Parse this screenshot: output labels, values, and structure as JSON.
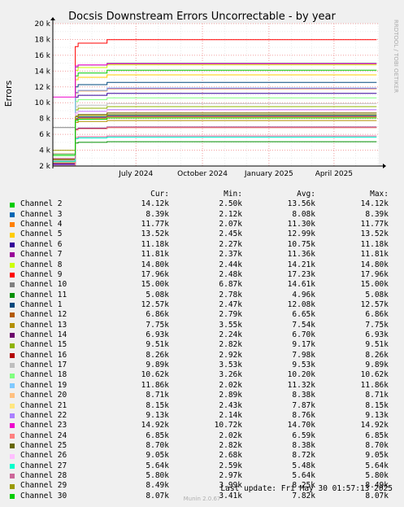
{
  "chart_data": {
    "type": "line",
    "title": "Docsis Downstream Errors Uncorrectable - by year",
    "ylabel": "Errors",
    "ylim": [
      2000,
      20000
    ],
    "yticks": [
      {
        "v": 2000,
        "label": "2 k"
      },
      {
        "v": 4000,
        "label": "4 k"
      },
      {
        "v": 6000,
        "label": "6 k"
      },
      {
        "v": 8000,
        "label": "8 k"
      },
      {
        "v": 10000,
        "label": "10 k"
      },
      {
        "v": 12000,
        "label": "12 k"
      },
      {
        "v": 14000,
        "label": "14 k"
      },
      {
        "v": 16000,
        "label": "16 k"
      },
      {
        "v": 18000,
        "label": "18 k"
      },
      {
        "v": 20000,
        "label": "20 k"
      }
    ],
    "xlim": [
      "2024-03-08",
      "2025-06-02"
    ],
    "xticks": [
      {
        "date": "2024-07-01",
        "label": "July 2024"
      },
      {
        "date": "2024-10-01",
        "label": "October 2024"
      },
      {
        "date": "2025-01-01",
        "label": "January 2025"
      },
      {
        "date": "2025-04-01",
        "label": "April 2025"
      }
    ],
    "series": [
      {
        "name": "Channel 2",
        "color": "#00cc00",
        "values": [
          2500,
          13400,
          13560,
          14120
        ]
      },
      {
        "name": "Channel 3",
        "color": "#0066b3",
        "values": [
          2120,
          8000,
          8080,
          8390
        ]
      },
      {
        "name": "Channel 4",
        "color": "#ff8000",
        "values": [
          2070,
          11200,
          11300,
          11770
        ]
      },
      {
        "name": "Channel 5",
        "color": "#ffcc00",
        "values": [
          2450,
          12900,
          12990,
          13520
        ]
      },
      {
        "name": "Channel 6",
        "color": "#330099",
        "values": [
          2270,
          10700,
          10750,
          11180
        ]
      },
      {
        "name": "Channel 7",
        "color": "#990099",
        "values": [
          2370,
          11300,
          11360,
          11810
        ]
      },
      {
        "name": "Channel 8",
        "color": "#ccff00",
        "values": [
          2440,
          14100,
          14210,
          14800
        ]
      },
      {
        "name": "Channel 9",
        "color": "#ff0000",
        "values": [
          2480,
          17100,
          17230,
          17960
        ]
      },
      {
        "name": "Channel 10",
        "color": "#808080",
        "values": [
          6870,
          14500,
          14610,
          15000
        ]
      },
      {
        "name": "Channel 11",
        "color": "#008f00",
        "values": [
          2780,
          4900,
          4960,
          5080
        ]
      },
      {
        "name": "Channel 1",
        "color": "#00487d",
        "values": [
          2470,
          12000,
          12080,
          12570
        ]
      },
      {
        "name": "Channel 12",
        "color": "#b35a00",
        "values": [
          2790,
          6600,
          6650,
          6860
        ]
      },
      {
        "name": "Channel 13",
        "color": "#b38f00",
        "values": [
          3550,
          7500,
          7540,
          7750
        ]
      },
      {
        "name": "Channel 14",
        "color": "#6b006b",
        "values": [
          2240,
          6650,
          6700,
          6930
        ]
      },
      {
        "name": "Channel 15",
        "color": "#8fb300",
        "values": [
          2820,
          9100,
          9170,
          9510
        ]
      },
      {
        "name": "Channel 16",
        "color": "#b30000",
        "values": [
          2920,
          7900,
          7980,
          8260
        ]
      },
      {
        "name": "Channel 17",
        "color": "#bebebe",
        "values": [
          3530,
          9500,
          9530,
          9890
        ]
      },
      {
        "name": "Channel 18",
        "color": "#80ff80",
        "values": [
          3260,
          10150,
          10200,
          10620
        ]
      },
      {
        "name": "Channel 19",
        "color": "#80c9ff",
        "values": [
          2020,
          11250,
          11320,
          11860
        ]
      },
      {
        "name": "Channel 20",
        "color": "#ffc080",
        "values": [
          2890,
          8300,
          8380,
          8710
        ]
      },
      {
        "name": "Channel 21",
        "color": "#ffe680",
        "values": [
          2430,
          7800,
          7870,
          8150
        ]
      },
      {
        "name": "Channel 22",
        "color": "#aa80ff",
        "values": [
          2140,
          8700,
          8760,
          9130
        ]
      },
      {
        "name": "Channel 23",
        "color": "#ee00cc",
        "values": [
          10720,
          14650,
          14700,
          14920
        ]
      },
      {
        "name": "Channel 24",
        "color": "#ff8080",
        "values": [
          2020,
          6550,
          6590,
          6850
        ]
      },
      {
        "name": "Channel 25",
        "color": "#666600",
        "values": [
          2820,
          8300,
          8380,
          8700
        ]
      },
      {
        "name": "Channel 26",
        "color": "#ffbfff",
        "values": [
          2680,
          8650,
          8720,
          9050
        ]
      },
      {
        "name": "Channel 27",
        "color": "#00ffcc",
        "values": [
          2590,
          5450,
          5480,
          5640
        ]
      },
      {
        "name": "Channel 28",
        "color": "#cc6699",
        "values": [
          2970,
          5600,
          5640,
          5800
        ]
      },
      {
        "name": "Channel 29",
        "color": "#999900",
        "values": [
          3990,
          8200,
          8250,
          8490
        ]
      },
      {
        "name": "Channel 30",
        "color": "#00cc00",
        "values": [
          3410,
          7750,
          7820,
          8070
        ]
      }
    ]
  },
  "legend": {
    "header": {
      "cur": "Cur:",
      "min": "Min:",
      "avg": "Avg:",
      "max": "Max:"
    },
    "rows": [
      {
        "name": "Channel 2",
        "color": "#00cc00",
        "cur": "14.12k",
        "min": "2.50k",
        "avg": "13.56k",
        "max": "14.12k"
      },
      {
        "name": "Channel 3",
        "color": "#0066b3",
        "cur": "8.39k",
        "min": "2.12k",
        "avg": "8.08k",
        "max": "8.39k"
      },
      {
        "name": "Channel 4",
        "color": "#ff8000",
        "cur": "11.77k",
        "min": "2.07k",
        "avg": "11.30k",
        "max": "11.77k"
      },
      {
        "name": "Channel 5",
        "color": "#ffcc00",
        "cur": "13.52k",
        "min": "2.45k",
        "avg": "12.99k",
        "max": "13.52k"
      },
      {
        "name": "Channel 6",
        "color": "#330099",
        "cur": "11.18k",
        "min": "2.27k",
        "avg": "10.75k",
        "max": "11.18k"
      },
      {
        "name": "Channel 7",
        "color": "#990099",
        "cur": "11.81k",
        "min": "2.37k",
        "avg": "11.36k",
        "max": "11.81k"
      },
      {
        "name": "Channel 8",
        "color": "#ccff00",
        "cur": "14.80k",
        "min": "2.44k",
        "avg": "14.21k",
        "max": "14.80k"
      },
      {
        "name": "Channel 9",
        "color": "#ff0000",
        "cur": "17.96k",
        "min": "2.48k",
        "avg": "17.23k",
        "max": "17.96k"
      },
      {
        "name": "Channel 10",
        "color": "#808080",
        "cur": "15.00k",
        "min": "6.87k",
        "avg": "14.61k",
        "max": "15.00k"
      },
      {
        "name": "Channel 11",
        "color": "#008f00",
        "cur": "5.08k",
        "min": "2.78k",
        "avg": "4.96k",
        "max": "5.08k"
      },
      {
        "name": "Channel 1",
        "color": "#00487d",
        "cur": "12.57k",
        "min": "2.47k",
        "avg": "12.08k",
        "max": "12.57k"
      },
      {
        "name": "Channel 12",
        "color": "#b35a00",
        "cur": "6.86k",
        "min": "2.79k",
        "avg": "6.65k",
        "max": "6.86k"
      },
      {
        "name": "Channel 13",
        "color": "#b38f00",
        "cur": "7.75k",
        "min": "3.55k",
        "avg": "7.54k",
        "max": "7.75k"
      },
      {
        "name": "Channel 14",
        "color": "#6b006b",
        "cur": "6.93k",
        "min": "2.24k",
        "avg": "6.70k",
        "max": "6.93k"
      },
      {
        "name": "Channel 15",
        "color": "#8fb300",
        "cur": "9.51k",
        "min": "2.82k",
        "avg": "9.17k",
        "max": "9.51k"
      },
      {
        "name": "Channel 16",
        "color": "#b30000",
        "cur": "8.26k",
        "min": "2.92k",
        "avg": "7.98k",
        "max": "8.26k"
      },
      {
        "name": "Channel 17",
        "color": "#bebebe",
        "cur": "9.89k",
        "min": "3.53k",
        "avg": "9.53k",
        "max": "9.89k"
      },
      {
        "name": "Channel 18",
        "color": "#80ff80",
        "cur": "10.62k",
        "min": "3.26k",
        "avg": "10.20k",
        "max": "10.62k"
      },
      {
        "name": "Channel 19",
        "color": "#80c9ff",
        "cur": "11.86k",
        "min": "2.02k",
        "avg": "11.32k",
        "max": "11.86k"
      },
      {
        "name": "Channel 20",
        "color": "#ffc080",
        "cur": "8.71k",
        "min": "2.89k",
        "avg": "8.38k",
        "max": "8.71k"
      },
      {
        "name": "Channel 21",
        "color": "#ffe680",
        "cur": "8.15k",
        "min": "2.43k",
        "avg": "7.87k",
        "max": "8.15k"
      },
      {
        "name": "Channel 22",
        "color": "#aa80ff",
        "cur": "9.13k",
        "min": "2.14k",
        "avg": "8.76k",
        "max": "9.13k"
      },
      {
        "name": "Channel 23",
        "color": "#ee00cc",
        "cur": "14.92k",
        "min": "10.72k",
        "avg": "14.70k",
        "max": "14.92k"
      },
      {
        "name": "Channel 24",
        "color": "#ff8080",
        "cur": "6.85k",
        "min": "2.02k",
        "avg": "6.59k",
        "max": "6.85k"
      },
      {
        "name": "Channel 25",
        "color": "#666600",
        "cur": "8.70k",
        "min": "2.82k",
        "avg": "8.38k",
        "max": "8.70k"
      },
      {
        "name": "Channel 26",
        "color": "#ffbfff",
        "cur": "9.05k",
        "min": "2.68k",
        "avg": "8.72k",
        "max": "9.05k"
      },
      {
        "name": "Channel 27",
        "color": "#00ffcc",
        "cur": "5.64k",
        "min": "2.59k",
        "avg": "5.48k",
        "max": "5.64k"
      },
      {
        "name": "Channel 28",
        "color": "#cc6699",
        "cur": "5.80k",
        "min": "2.97k",
        "avg": "5.64k",
        "max": "5.80k"
      },
      {
        "name": "Channel 29",
        "color": "#999900",
        "cur": "8.49k",
        "min": "3.99k",
        "avg": "8.25k",
        "max": "8.49k"
      },
      {
        "name": "Channel 30",
        "color": "#00cc00",
        "cur": "8.07k",
        "min": "3.41k",
        "avg": "7.82k",
        "max": "8.07k"
      }
    ]
  },
  "watermark": "RRDTOOL / TOBI OETIKER",
  "last_update": "Last update: Fri May 30 01:57:13 2025",
  "footer": "Munin 2.0.67"
}
